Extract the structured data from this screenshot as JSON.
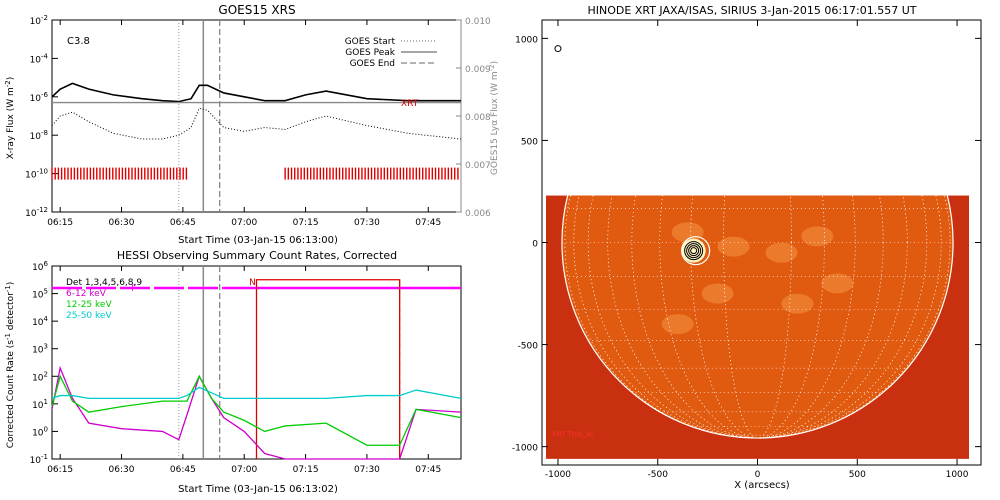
{
  "chart_data": [
    {
      "type": "line",
      "title": "GOES15 XRS",
      "xlabel": "Start Time (03-Jan-15 06:13:00)",
      "ylabel": "X-ray Flux (W m",
      "ylabel_exp": "-2",
      "ylabel_close": ")",
      "ylabel_right": "GOES15 Lyα Flux (W m",
      "class_label": "C3.8",
      "xrt_label": "XRT",
      "x_ticks": [
        "06:15",
        "06:30",
        "06:45",
        "07:00",
        "07:15",
        "07:30",
        "07:45"
      ],
      "y_ticks": [
        {
          "base": "10",
          "exp": "-2"
        },
        {
          "base": "10",
          "exp": "-4"
        },
        {
          "base": "10",
          "exp": "-6"
        },
        {
          "base": "10",
          "exp": "-8"
        },
        {
          "base": "10",
          "exp": "-10"
        },
        {
          "base": "10",
          "exp": "-12"
        }
      ],
      "y_ticks_right": [
        "0.010",
        "0.009",
        "0.008",
        "0.007",
        "0.006"
      ],
      "xlim": [
        "06:13",
        "07:53"
      ],
      "ylim_log": [
        -12,
        -2
      ],
      "ylim_right": [
        0.006,
        0.01
      ],
      "legend": [
        "GOES Start",
        "GOES Peak",
        "GOES End"
      ],
      "legend_position": "top-right",
      "event_lines": {
        "start": "06:44",
        "peak": "06:50",
        "end": "06:54"
      },
      "series": [
        {
          "name": "",
          "style": "solid-black",
          "x": [
            "06:13",
            "06:15",
            "06:18",
            "06:22",
            "06:28",
            "06:35",
            "06:40",
            "06:44",
            "06:47",
            "06:49",
            "06:51",
            "06:55",
            "07:00",
            "07:05",
            "07:10",
            "07:15",
            "07:20",
            "07:30",
            "07:40",
            "07:53"
          ],
          "y": [
            -6.0,
            -5.6,
            -5.3,
            -5.6,
            -5.9,
            -6.1,
            -6.2,
            -6.25,
            -6.1,
            -5.4,
            -5.4,
            -5.8,
            -6.0,
            -6.2,
            -6.2,
            -5.9,
            -5.7,
            -6.1,
            -6.2,
            -6.2
          ]
        },
        {
          "name": "",
          "style": "solid-gray",
          "x": [
            "06:13",
            "07:53"
          ],
          "y": [
            -6.3,
            -6.3
          ]
        },
        {
          "name": "",
          "style": "dotted-black",
          "x": [
            "06:13",
            "06:15",
            "06:18",
            "06:22",
            "06:28",
            "06:35",
            "06:40",
            "06:44",
            "06:47",
            "06:49",
            "06:51",
            "06:55",
            "07:00",
            "07:05",
            "07:10",
            "07:15",
            "07:20",
            "07:30",
            "07:40",
            "07:53"
          ],
          "y": [
            -7.5,
            -7.0,
            -6.8,
            -7.3,
            -7.9,
            -8.2,
            -8.2,
            -8.0,
            -7.6,
            -6.6,
            -6.7,
            -7.6,
            -7.8,
            -7.6,
            -7.7,
            -7.3,
            -7.0,
            -7.5,
            -7.9,
            -8.2
          ]
        }
      ],
      "data_ranges": [
        [
          "06:13",
          "06:46"
        ],
        [
          "07:10",
          "07:53"
        ]
      ]
    },
    {
      "type": "line",
      "title": "HESSI Observing Summary Count Rates, Corrected",
      "xlabel": "Start Time (03-Jan-15 06:13:02)",
      "ylabel": "Corrected Count Rate (s",
      "ylabel_exp": "-1",
      "ylabel_close": " detector",
      "ylabel_close2": ")",
      "x_ticks": [
        "06:15",
        "06:30",
        "06:45",
        "07:00",
        "07:15",
        "07:30",
        "07:45"
      ],
      "y_ticks": [
        {
          "base": "10",
          "exp": "6"
        },
        {
          "base": "10",
          "exp": "5"
        },
        {
          "base": "10",
          "exp": "4"
        },
        {
          "base": "10",
          "exp": "3"
        },
        {
          "base": "10",
          "exp": "2"
        },
        {
          "base": "10",
          "exp": "1"
        },
        {
          "base": "10",
          "exp": "0"
        },
        {
          "base": "10",
          "exp": "-1"
        }
      ],
      "xlim": [
        "06:13",
        "07:53"
      ],
      "ylim_log": [
        -1,
        6
      ],
      "legend": [
        "Det 1,3,4,5,6,8,9",
        "6-12 keV",
        "12-25 keV",
        "25-50 keV"
      ],
      "legend_colors": [
        "#000000",
        "#cc00cc",
        "#00cc00",
        "#00cccc"
      ],
      "flag_F": "F",
      "flag_N": "N",
      "series": [
        {
          "name": "6-12 keV",
          "x": [
            "06:13",
            "06:15",
            "06:18",
            "06:22",
            "06:30",
            "06:40",
            "06:44",
            "06:46",
            "06:49",
            "06:52",
            "06:55",
            "07:00",
            "07:05",
            "07:10",
            "07:20",
            "07:30",
            "07:38",
            "07:42",
            "07:53"
          ],
          "y": [
            0.8,
            2.3,
            1.2,
            0.3,
            0.1,
            0,
            -0.3,
            0.6,
            2.0,
            1.2,
            0.5,
            0,
            -0.8,
            -1,
            -1,
            -1,
            -1,
            0.8,
            0.7
          ]
        },
        {
          "name": "12-25 keV",
          "x": [
            "06:13",
            "06:15",
            "06:18",
            "06:22",
            "06:30",
            "06:40",
            "06:44",
            "06:46",
            "06:49",
            "06:52",
            "06:55",
            "07:00",
            "07:05",
            "07:10",
            "07:20",
            "07:30",
            "07:38",
            "07:42",
            "07:53"
          ],
          "y": [
            0.9,
            2.0,
            1.1,
            0.7,
            0.9,
            1.1,
            1.1,
            1.1,
            2.0,
            1.2,
            0.7,
            0.4,
            0,
            0.2,
            0.3,
            -0.5,
            -0.5,
            0.8,
            0.5
          ]
        },
        {
          "name": "25-50 keV",
          "x": [
            "06:13",
            "06:15",
            "06:18",
            "06:22",
            "06:30",
            "06:40",
            "06:44",
            "06:46",
            "06:49",
            "06:52",
            "06:55",
            "07:00",
            "07:05",
            "07:10",
            "07:20",
            "07:30",
            "07:38",
            "07:42",
            "07:53"
          ],
          "y": [
            1.2,
            1.3,
            1.3,
            1.2,
            1.2,
            1.2,
            1.2,
            1.3,
            1.6,
            1.4,
            1.2,
            1.2,
            1.2,
            1.2,
            1.2,
            1.3,
            1.3,
            1.5,
            1.2
          ]
        }
      ],
      "attenuator": {
        "x": [
          "06:13",
          "06:55",
          "07:03",
          "07:38",
          "07:53"
        ],
        "y": [
          5.2,
          5.1,
          -1,
          5.5,
          5.2
        ]
      }
    },
    {
      "type": "heatmap",
      "title": "HINODE XRT JAXA/ISAS, SIRIUS  3-Jan-2015 06:17:01.557 UT",
      "xlabel": "X (arcsecs)",
      "x_ticks": [
        "-1000",
        "-500",
        "0",
        "500",
        "1000"
      ],
      "y_ticks": [
        "1000",
        "500",
        "0",
        "-500",
        "-1000"
      ],
      "xlim": [
        -1080,
        1120
      ],
      "ylim": [
        -1090,
        1090
      ],
      "image_extent": {
        "x": [
          -1060,
          1060
        ],
        "y": [
          -1060,
          230
        ]
      },
      "limb_radius": 980,
      "grid_spacing_deg": 10,
      "colors": {
        "image": "#e05a10",
        "background": "#c83010",
        "limb": "#ffffff",
        "contour": "#000000"
      },
      "red_text": "XRT Thin_Al"
    }
  ]
}
